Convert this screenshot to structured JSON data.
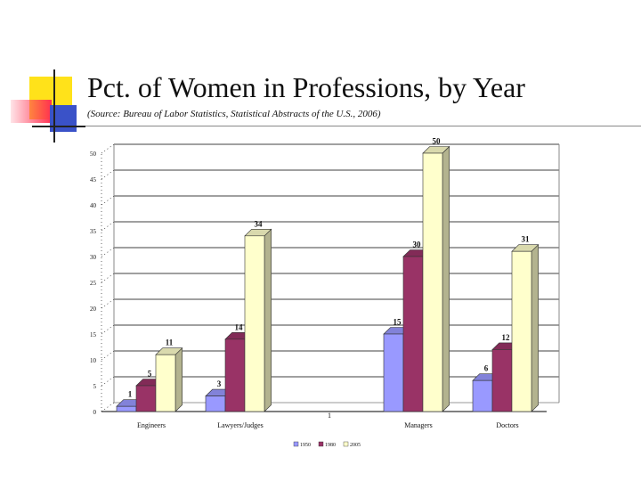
{
  "slide": {
    "title": "Pct. of Women in Professions, by Year",
    "subtitle": "(Source: Bureau of Labor Statistics, Statistical Abstracts of the U.S., 2006)"
  },
  "colors": {
    "series1": "#9999ff",
    "series2": "#993366",
    "series3": "#ffffcc"
  },
  "chart_data": {
    "type": "bar",
    "categories": [
      "Engineers",
      "Lawyers/Judges",
      "",
      "Managers",
      "Doctors"
    ],
    "series": [
      {
        "name": "1950",
        "values": [
          1,
          3,
          null,
          15,
          6
        ]
      },
      {
        "name": "1980",
        "values": [
          5,
          14,
          null,
          30,
          12
        ]
      },
      {
        "name": "2005",
        "values": [
          11,
          34,
          null,
          50,
          31
        ]
      }
    ],
    "extra_labels": [
      {
        "category_index": 2,
        "text": "1"
      }
    ],
    "y_tick_labels": [
      "0",
      "5",
      "10",
      "15",
      "20",
      "25",
      "30",
      "35",
      "40",
      "45",
      "50"
    ],
    "ylim": [
      0,
      50
    ],
    "grid": true,
    "legend_position": "bottom",
    "title": "",
    "xlabel": "",
    "ylabel": ""
  }
}
